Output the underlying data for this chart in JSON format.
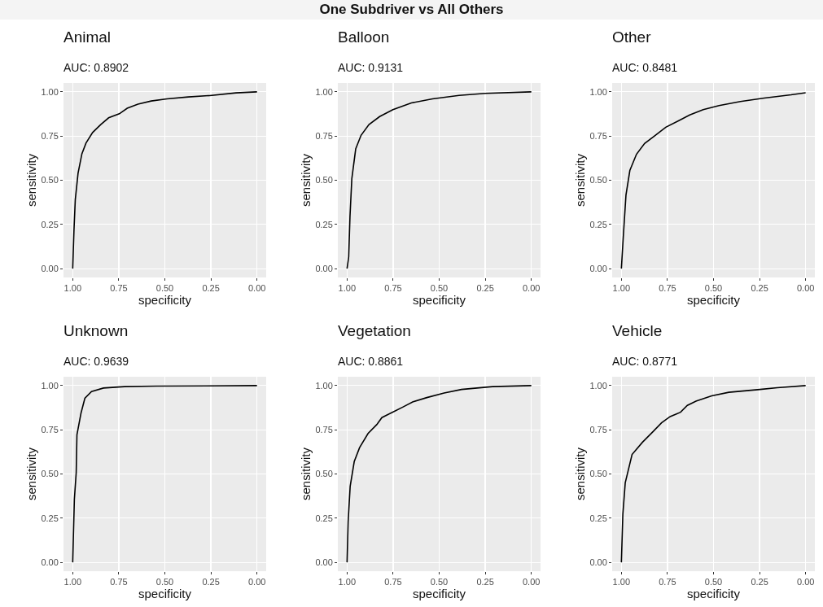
{
  "chart_data": [
    {
      "type": "other",
      "title": "One Subdriver vs All Others"
    },
    {
      "type": "line",
      "title": "Animal",
      "subtitle": "AUC: 0.8902",
      "xlabel": "specificity",
      "ylabel": "sensitivity",
      "xlim": [
        1.05,
        -0.05
      ],
      "ylim": [
        -0.05,
        1.05
      ],
      "xticks": [
        {
          "value": 1,
          "label": "1.00"
        },
        {
          "value": 0.75,
          "label": "0.75"
        },
        {
          "value": 0.5,
          "label": "0.50"
        },
        {
          "value": 0.25,
          "label": "0.25"
        },
        {
          "value": 0,
          "label": "0.00"
        }
      ],
      "yticks": [
        {
          "value": 0,
          "label": "0.00"
        },
        {
          "value": 0.25,
          "label": "0.25"
        },
        {
          "value": 0.5,
          "label": "0.50"
        },
        {
          "value": 0.75,
          "label": "0.75"
        },
        {
          "value": 1,
          "label": "1.00"
        }
      ],
      "grid": true,
      "marker": "none",
      "line_style": "solid",
      "series": [
        {
          "color": "#000000",
          "x": [
            1,
            0.993,
            0.986,
            0.971,
            0.95,
            0.928,
            0.892,
            0.848,
            0.805,
            0.747,
            0.704,
            0.646,
            0.574,
            0.488,
            0.372,
            0.257,
            0.113,
            0
          ],
          "values": [
            0,
            0.22,
            0.39,
            0.54,
            0.65,
            0.71,
            0.77,
            0.815,
            0.853,
            0.876,
            0.907,
            0.93,
            0.948,
            0.96,
            0.971,
            0.979,
            0.994,
            1
          ]
        }
      ]
    },
    {
      "type": "line",
      "title": "Balloon",
      "subtitle": "AUC: 0.9131",
      "xlabel": "specificity",
      "ylabel": "sensitivity",
      "xlim": [
        1.05,
        -0.05
      ],
      "ylim": [
        -0.05,
        1.05
      ],
      "xticks": [
        {
          "value": 1,
          "label": "1.00"
        },
        {
          "value": 0.75,
          "label": "0.75"
        },
        {
          "value": 0.5,
          "label": "0.50"
        },
        {
          "value": 0.25,
          "label": "0.25"
        },
        {
          "value": 0,
          "label": "0.00"
        }
      ],
      "yticks": [
        {
          "value": 0,
          "label": "0.00"
        },
        {
          "value": 0.25,
          "label": "0.25"
        },
        {
          "value": 0.5,
          "label": "0.50"
        },
        {
          "value": 0.75,
          "label": "0.75"
        },
        {
          "value": 1,
          "label": "1.00"
        }
      ],
      "grid": true,
      "marker": "none",
      "line_style": "solid",
      "series": [
        {
          "color": "#000000",
          "x": [
            1,
            0.991,
            0.984,
            0.974,
            0.953,
            0.924,
            0.881,
            0.823,
            0.751,
            0.651,
            0.536,
            0.392,
            0.249,
            0
          ],
          "values": [
            0,
            0.066,
            0.295,
            0.509,
            0.677,
            0.754,
            0.815,
            0.86,
            0.899,
            0.937,
            0.96,
            0.98,
            0.991,
            1
          ]
        }
      ]
    },
    {
      "type": "line",
      "title": "Other",
      "subtitle": "AUC: 0.8481",
      "xlabel": "specificity",
      "ylabel": "sensitivity",
      "xlim": [
        1.05,
        -0.05
      ],
      "ylim": [
        -0.05,
        1.05
      ],
      "xticks": [
        {
          "value": 1,
          "label": "1.00"
        },
        {
          "value": 0.75,
          "label": "0.75"
        },
        {
          "value": 0.5,
          "label": "0.50"
        },
        {
          "value": 0.25,
          "label": "0.25"
        },
        {
          "value": 0,
          "label": "0.00"
        }
      ],
      "yticks": [
        {
          "value": 0,
          "label": "0.00"
        },
        {
          "value": 0.25,
          "label": "0.25"
        },
        {
          "value": 0.5,
          "label": "0.50"
        },
        {
          "value": 0.75,
          "label": "0.75"
        },
        {
          "value": 1,
          "label": "1.00"
        }
      ],
      "grid": true,
      "marker": "none",
      "line_style": "solid",
      "series": [
        {
          "color": "#000000",
          "x": [
            1,
            0.99,
            0.975,
            0.954,
            0.918,
            0.874,
            0.816,
            0.759,
            0.686,
            0.629,
            0.556,
            0.47,
            0.354,
            0.224,
            0.079,
            0
          ],
          "values": [
            0,
            0.173,
            0.417,
            0.555,
            0.647,
            0.708,
            0.754,
            0.8,
            0.838,
            0.869,
            0.899,
            0.922,
            0.945,
            0.965,
            0.983,
            0.995
          ]
        }
      ]
    },
    {
      "type": "line",
      "title": "Unknown",
      "subtitle": "AUC: 0.9639",
      "xlabel": "specificity",
      "ylabel": "sensitivity",
      "xlim": [
        1.05,
        -0.05
      ],
      "ylim": [
        -0.05,
        1.05
      ],
      "xticks": [
        {
          "value": 1,
          "label": "1.00"
        },
        {
          "value": 0.75,
          "label": "0.75"
        },
        {
          "value": 0.5,
          "label": "0.50"
        },
        {
          "value": 0.25,
          "label": "0.25"
        },
        {
          "value": 0,
          "label": "0.00"
        }
      ],
      "yticks": [
        {
          "value": 0,
          "label": "0.00"
        },
        {
          "value": 0.25,
          "label": "0.25"
        },
        {
          "value": 0.5,
          "label": "0.50"
        },
        {
          "value": 0.75,
          "label": "0.75"
        },
        {
          "value": 1,
          "label": "1.00"
        }
      ],
      "grid": true,
      "marker": "none",
      "line_style": "solid",
      "series": [
        {
          "color": "#000000",
          "x": [
            1,
            0.991,
            0.981,
            0.977,
            0.955,
            0.934,
            0.898,
            0.833,
            0.718,
            0.545,
            0
          ],
          "values": [
            0,
            0.356,
            0.508,
            0.722,
            0.844,
            0.928,
            0.966,
            0.986,
            0.994,
            0.997,
            1
          ]
        }
      ]
    },
    {
      "type": "line",
      "title": "Vegetation",
      "subtitle": "AUC: 0.8861",
      "xlabel": "specificity",
      "ylabel": "sensitivity",
      "xlim": [
        1.05,
        -0.05
      ],
      "ylim": [
        -0.05,
        1.05
      ],
      "xticks": [
        {
          "value": 1,
          "label": "1.00"
        },
        {
          "value": 0.75,
          "label": "0.75"
        },
        {
          "value": 0.5,
          "label": "0.50"
        },
        {
          "value": 0.25,
          "label": "0.25"
        },
        {
          "value": 0,
          "label": "0.00"
        }
      ],
      "yticks": [
        {
          "value": 0,
          "label": "0.00"
        },
        {
          "value": 0.25,
          "label": "0.25"
        },
        {
          "value": 0.5,
          "label": "0.50"
        },
        {
          "value": 0.75,
          "label": "0.75"
        },
        {
          "value": 1,
          "label": "1.00"
        }
      ],
      "grid": true,
      "marker": "none",
      "line_style": "solid",
      "series": [
        {
          "color": "#000000",
          "x": [
            1,
            0.994,
            0.983,
            0.961,
            0.932,
            0.886,
            0.839,
            0.811,
            0.754,
            0.698,
            0.642,
            0.567,
            0.473,
            0.379,
            0.21,
            0
          ],
          "values": [
            0,
            0.231,
            0.43,
            0.57,
            0.649,
            0.729,
            0.779,
            0.819,
            0.849,
            0.878,
            0.908,
            0.932,
            0.958,
            0.978,
            0.994,
            1
          ]
        }
      ]
    },
    {
      "type": "line",
      "title": "Vehicle",
      "subtitle": "AUC: 0.8771",
      "xlabel": "specificity",
      "ylabel": "sensitivity",
      "xlim": [
        1.05,
        -0.05
      ],
      "ylim": [
        -0.05,
        1.05
      ],
      "xticks": [
        {
          "value": 1,
          "label": "1.00"
        },
        {
          "value": 0.75,
          "label": "0.75"
        },
        {
          "value": 0.5,
          "label": "0.50"
        },
        {
          "value": 0.25,
          "label": "0.25"
        },
        {
          "value": 0,
          "label": "0.00"
        }
      ],
      "yticks": [
        {
          "value": 0,
          "label": "0.00"
        },
        {
          "value": 0.25,
          "label": "0.25"
        },
        {
          "value": 0.5,
          "label": "0.50"
        },
        {
          "value": 0.75,
          "label": "0.75"
        },
        {
          "value": 1,
          "label": "1.00"
        }
      ],
      "grid": true,
      "marker": "none",
      "line_style": "solid",
      "series": [
        {
          "color": "#000000",
          "x": [
            1,
            0.992,
            0.979,
            0.942,
            0.886,
            0.829,
            0.782,
            0.735,
            0.679,
            0.642,
            0.595,
            0.51,
            0.417,
            0.248,
            0.154,
            0
          ],
          "values": [
            0,
            0.271,
            0.45,
            0.61,
            0.679,
            0.739,
            0.789,
            0.825,
            0.849,
            0.888,
            0.912,
            0.942,
            0.962,
            0.978,
            0.988,
            1
          ]
        }
      ]
    }
  ]
}
